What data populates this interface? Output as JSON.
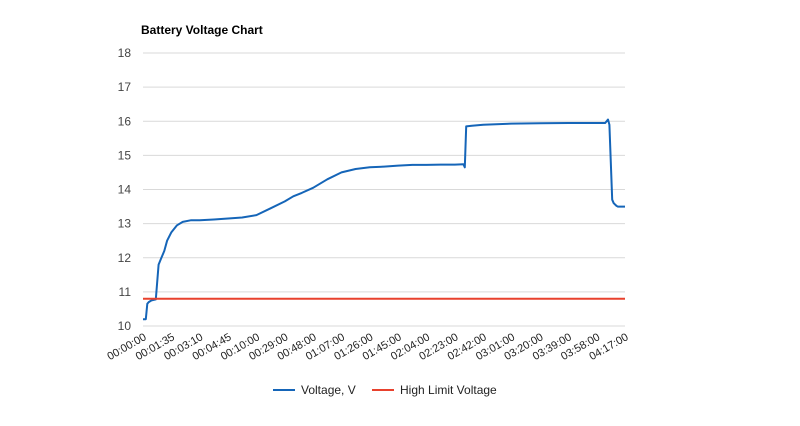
{
  "chart_data": {
    "type": "line",
    "title": "Battery Voltage Chart",
    "xlabel": "",
    "ylabel": "",
    "ylim": [
      10,
      18
    ],
    "yticks": [
      10,
      11,
      12,
      13,
      14,
      15,
      16,
      17,
      18
    ],
    "grid": true,
    "legend_position": "bottom",
    "x_tick_labels": [
      "00:00:00",
      "00:01:35",
      "00:03:10",
      "00:04:45",
      "00:10:00",
      "00:29:00",
      "00:48:00",
      "01:07:00",
      "01:26:00",
      "01:45:00",
      "02:04:00",
      "02:23:00",
      "02:42:00",
      "03:01:00",
      "03:20:00",
      "03:39:00",
      "03:58:00",
      "04:17:00"
    ],
    "series": [
      {
        "name": "Voltage, V",
        "color": "#1565b8",
        "x": [
          0,
          0.1,
          0.15,
          0.2,
          0.3,
          0.45,
          0.55,
          0.65,
          0.75,
          0.85,
          1.0,
          1.2,
          1.4,
          1.7,
          2.0,
          2.5,
          3.0,
          3.5,
          4.0,
          4.5,
          5.0,
          5.3,
          5.6,
          6.0,
          6.5,
          7.0,
          7.5,
          8.0,
          8.5,
          9.0,
          9.5,
          10.0,
          10.5,
          11.0,
          11.3,
          11.35,
          11.4,
          11.6,
          12.0,
          13.0,
          14.0,
          15.0,
          16.0,
          16.3,
          16.4,
          16.45,
          16.55,
          16.6,
          16.7,
          16.75,
          16.9,
          17.0
        ],
        "values": [
          10.2,
          10.2,
          10.65,
          10.7,
          10.75,
          10.78,
          11.8,
          12.0,
          12.2,
          12.5,
          12.75,
          12.95,
          13.05,
          13.1,
          13.1,
          13.12,
          13.15,
          13.18,
          13.25,
          13.45,
          13.65,
          13.8,
          13.9,
          14.05,
          14.3,
          14.5,
          14.6,
          14.65,
          14.67,
          14.7,
          14.72,
          14.72,
          14.73,
          14.73,
          14.74,
          14.65,
          15.85,
          15.87,
          15.9,
          15.93,
          15.94,
          15.95,
          15.95,
          15.95,
          16.05,
          15.9,
          13.7,
          13.6,
          13.52,
          13.5,
          13.5,
          13.5
        ]
      },
      {
        "name": "High Limit Voltage",
        "color": "#e8412d",
        "x": [
          0,
          17.0
        ],
        "values": [
          10.8,
          10.8
        ]
      }
    ]
  }
}
